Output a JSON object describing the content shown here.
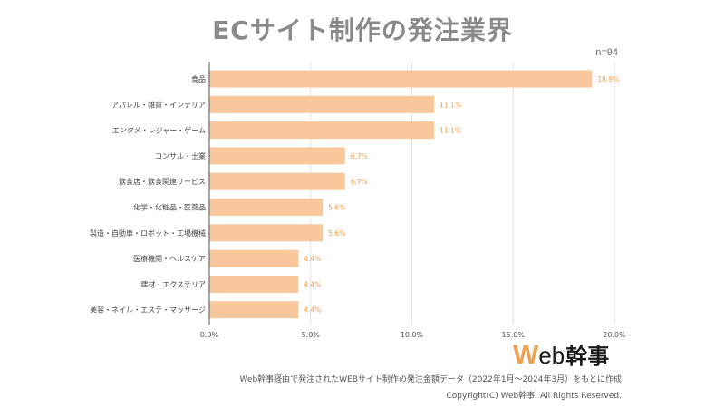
{
  "header": {
    "title": "ECサイト制作の発注業界",
    "n_label": "n=94"
  },
  "chart_data": {
    "type": "bar",
    "orientation": "horizontal",
    "categories": [
      "食品",
      "アパレル・雑貨・インテリア",
      "エンタメ・レジャー・ゲーム",
      "コンサル・士業",
      "飲食店・飲食関連サービス",
      "化学・化粧品・医薬品",
      "製造・自動車・ロボット・工場機械",
      "医療機関・ヘルスケア",
      "建材・エクステリア",
      "美容・ネイル・エステ・マッサージ"
    ],
    "values": [
      18.9,
      11.1,
      11.1,
      6.7,
      6.7,
      5.6,
      5.6,
      4.4,
      4.4,
      4.4
    ],
    "value_labels": [
      "18.9%",
      "11.1%",
      "11.1%",
      "6.7%",
      "6.7%",
      "5.6%",
      "5.6%",
      "4.4%",
      "4.4%",
      "4.4%"
    ],
    "xlim": [
      0,
      20
    ],
    "xticks": [
      0,
      5,
      10,
      15,
      20
    ],
    "xtick_labels": [
      "0.0%",
      "5.0%",
      "10.0%",
      "15.0%",
      "20.0%"
    ],
    "grid": true,
    "bar_color": "#f8c79b",
    "label_color": "#f0a050"
  },
  "footer": {
    "logo_w": "W",
    "logo_eb": "eb",
    "logo_jp": "幹事",
    "source": "Web幹事経由で発注されたWEBサイト制作の発注金額データ（2022年1月〜2024年3月）をもとに作成",
    "copyright": "Copyright(C) Web幹事. All Rights Reserved."
  }
}
